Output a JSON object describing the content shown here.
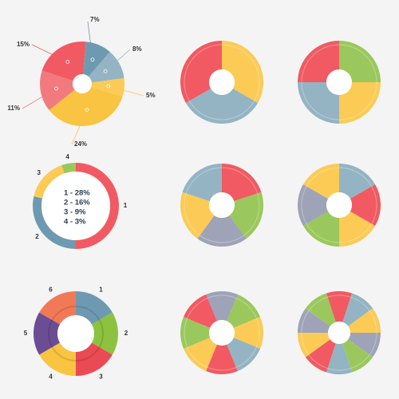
{
  "colors": {
    "red": "#f15a62",
    "blue": "#94b4c3",
    "yellow": "#fbcb55",
    "green": "#9ac85c",
    "grey": "#9ea3b7",
    "slate": "#6e9ab1",
    "coral": "#f27a7f",
    "purple": "#6b4d94",
    "orange": "#f27956",
    "deepred": "#ea4a54",
    "deepgreen": "#8cc23f",
    "deepyellow": "#f8c442"
  },
  "side_id": "307629479",
  "chart_data": [
    {
      "type": "pie",
      "values": [
        15,
        7,
        8,
        5,
        24,
        11
      ],
      "labels": [
        "15%",
        "7%",
        "8%",
        "5%",
        "24%",
        "11%"
      ],
      "hole": true
    },
    {
      "type": "pie",
      "values": [
        1,
        1,
        1
      ],
      "hole": true
    },
    {
      "type": "pie",
      "values": [
        1,
        1,
        1,
        1
      ],
      "hole": true
    },
    {
      "type": "pie",
      "values": [
        28,
        16,
        9,
        3
      ],
      "labels": [
        "1",
        "2",
        "3",
        "4"
      ],
      "legend": [
        "1 - 28%",
        "2 - 16%",
        "3 - 9%",
        "4 - 3%"
      ],
      "hole": true
    },
    {
      "type": "pie",
      "values": [
        1,
        1,
        1,
        1,
        1
      ],
      "hole": true
    },
    {
      "type": "pie",
      "values": [
        1,
        1,
        1,
        1,
        1,
        1
      ],
      "hole": true
    },
    {
      "type": "pie",
      "values": [
        1,
        1,
        1,
        1,
        1,
        1
      ],
      "labels": [
        "1",
        "2",
        "3",
        "4",
        "5",
        "6"
      ],
      "hole": true
    },
    {
      "type": "pie",
      "values": [
        1,
        1,
        1,
        1,
        1,
        1,
        1,
        1
      ],
      "hole": true
    },
    {
      "type": "pie",
      "values": [
        1,
        1,
        1,
        1,
        1,
        1,
        1,
        1,
        1,
        1
      ],
      "hole": true
    }
  ]
}
